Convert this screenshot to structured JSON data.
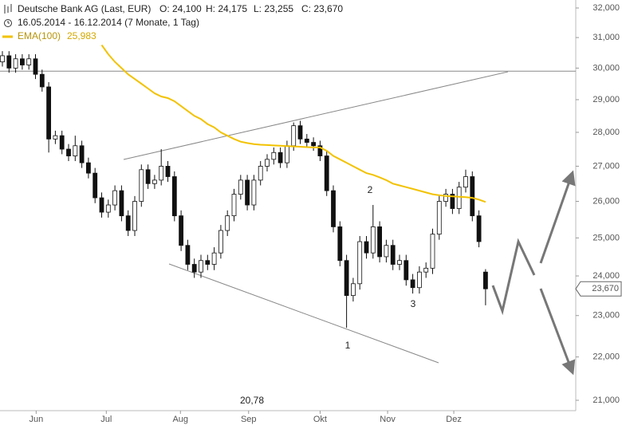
{
  "chart_data": {
    "type": "candlestick",
    "title": "Deutsche Bank AG (Last, EUR)",
    "ohlc_labels": [
      "O: 24,100",
      "H: 24,175",
      "L: 23,255",
      "C: 23,670"
    ],
    "subtitle": "16.05.2014 - 16.12.2014 (7 Monate, 1 Tag)",
    "log": true,
    "ylim": [
      21000,
      32000
    ],
    "yticks": [
      {
        "value": 21000,
        "label": "21,000"
      },
      {
        "value": 22000,
        "label": "22,000"
      },
      {
        "value": 23000,
        "label": "23,000"
      },
      {
        "value": 24000,
        "label": "24,000"
      },
      {
        "value": 25000,
        "label": "25,000"
      },
      {
        "value": 26000,
        "label": "26,000"
      },
      {
        "value": 27000,
        "label": "27,000"
      },
      {
        "value": 28000,
        "label": "28,000"
      },
      {
        "value": 29000,
        "label": "29,000"
      },
      {
        "value": 30000,
        "label": "30,000"
      },
      {
        "value": 31000,
        "label": "31,000"
      },
      {
        "value": 32000,
        "label": "32,000"
      }
    ],
    "xticks": [
      {
        "value": 5.1,
        "label": "Jun"
      },
      {
        "value": 15.7,
        "label": "Jul"
      },
      {
        "value": 26.9,
        "label": "Aug"
      },
      {
        "value": 37.2,
        "label": "Sep"
      },
      {
        "value": 48,
        "label": "Okt"
      },
      {
        "value": 58.2,
        "label": "Nov"
      },
      {
        "value": 68.2,
        "label": "Dez"
      }
    ],
    "hline": 29900,
    "up_color": "#ffffff",
    "down_color": "#111111",
    "open": [
      30200,
      30400,
      30000,
      30300,
      30100,
      30300,
      29800,
      29400,
      27800,
      27900,
      27500,
      27300,
      27600,
      27100,
      26800,
      26100,
      25700,
      25900,
      26300,
      25600,
      25200,
      26000,
      26900,
      26500,
      26600,
      27000,
      26700,
      25600,
      24800,
      24300,
      24100,
      24400,
      24300,
      24600,
      25200,
      25600,
      26200,
      26600,
      25900,
      26600,
      27000,
      27200,
      27400,
      27100,
      27600,
      28200,
      27800,
      27700,
      27600,
      27300,
      26300,
      25300,
      24400,
      23500,
      23800,
      24900,
      24600,
      25300,
      24500,
      24800,
      24300,
      24400,
      23900,
      23700,
      24100,
      24200,
      25100,
      26000,
      26200,
      25800,
      26400,
      26700,
      25600,
      24100
    ],
    "high": [
      30550,
      30550,
      30450,
      30450,
      30450,
      30450,
      29950,
      29550,
      28050,
      28050,
      27650,
      27900,
      27750,
      27250,
      26950,
      26250,
      26050,
      26450,
      26450,
      25750,
      26150,
      27050,
      27050,
      26750,
      27500,
      27150,
      26850,
      25750,
      24950,
      24450,
      24550,
      24550,
      24750,
      25350,
      25750,
      26350,
      26750,
      26750,
      26750,
      27150,
      27350,
      27550,
      27550,
      27750,
      28300,
      28350,
      27950,
      27850,
      27750,
      27450,
      26450,
      25450,
      24550,
      23950,
      25050,
      25050,
      25900,
      25450,
      24950,
      24950,
      24550,
      24550,
      24050,
      24250,
      24350,
      25250,
      26150,
      26350,
      26350,
      26550,
      26900,
      26850,
      25750,
      24175
    ],
    "low": [
      30050,
      29850,
      29850,
      29950,
      29950,
      29650,
      29250,
      27400,
      27650,
      27350,
      27150,
      27150,
      26950,
      26650,
      25950,
      25550,
      25550,
      25750,
      25450,
      25050,
      25050,
      25850,
      26350,
      26350,
      26450,
      26550,
      25450,
      24650,
      24150,
      23950,
      23950,
      24150,
      24150,
      24450,
      25050,
      25450,
      26050,
      25750,
      25750,
      26450,
      26850,
      27050,
      26950,
      26950,
      27450,
      27650,
      27550,
      27450,
      27150,
      26150,
      25150,
      24250,
      22700,
      23350,
      23650,
      24450,
      24450,
      24350,
      24350,
      24150,
      24150,
      23750,
      23550,
      23550,
      23950,
      24050,
      24950,
      25850,
      25650,
      25650,
      26250,
      25450,
      24750,
      23255
    ],
    "close": [
      30400,
      30000,
      30300,
      30100,
      30300,
      29800,
      29400,
      27800,
      27900,
      27500,
      27300,
      27600,
      27100,
      26800,
      26100,
      25700,
      25900,
      26300,
      25600,
      25200,
      26000,
      26900,
      26500,
      26600,
      27000,
      26700,
      25600,
      24800,
      24300,
      24100,
      24400,
      24300,
      24600,
      25200,
      25600,
      26200,
      26600,
      25900,
      26600,
      27000,
      27200,
      27400,
      27100,
      27600,
      28200,
      27800,
      27700,
      27600,
      27300,
      26300,
      25300,
      24400,
      23500,
      23800,
      24900,
      24600,
      25300,
      24500,
      24800,
      24300,
      24400,
      23900,
      23700,
      24100,
      24200,
      25100,
      26000,
      26200,
      25800,
      26400,
      26700,
      25600,
      24900,
      23670
    ],
    "last_label": "23,670",
    "series": [
      {
        "name": "EMA(100)",
        "value_label": "25,983",
        "color": "#f2c200",
        "values": [
          null,
          null,
          null,
          null,
          null,
          null,
          null,
          null,
          null,
          null,
          null,
          null,
          null,
          null,
          null,
          30750,
          30450,
          30200,
          30000,
          29800,
          29650,
          29500,
          29350,
          29200,
          29100,
          29050,
          28950,
          28800,
          28650,
          28500,
          28400,
          28250,
          28150,
          28000,
          27900,
          27800,
          27720,
          27680,
          27650,
          27630,
          27620,
          27610,
          27600,
          27590,
          27580,
          27570,
          27560,
          27550,
          27550,
          27450,
          27300,
          27200,
          27100,
          27000,
          26900,
          26800,
          26750,
          26680,
          26600,
          26500,
          26450,
          26400,
          26350,
          26300,
          26250,
          26200,
          26170,
          26150,
          26140,
          26130,
          26120,
          26100,
          26050,
          25983
        ]
      }
    ],
    "annotations": [
      "1",
      "2",
      "3",
      "20,78"
    ]
  }
}
